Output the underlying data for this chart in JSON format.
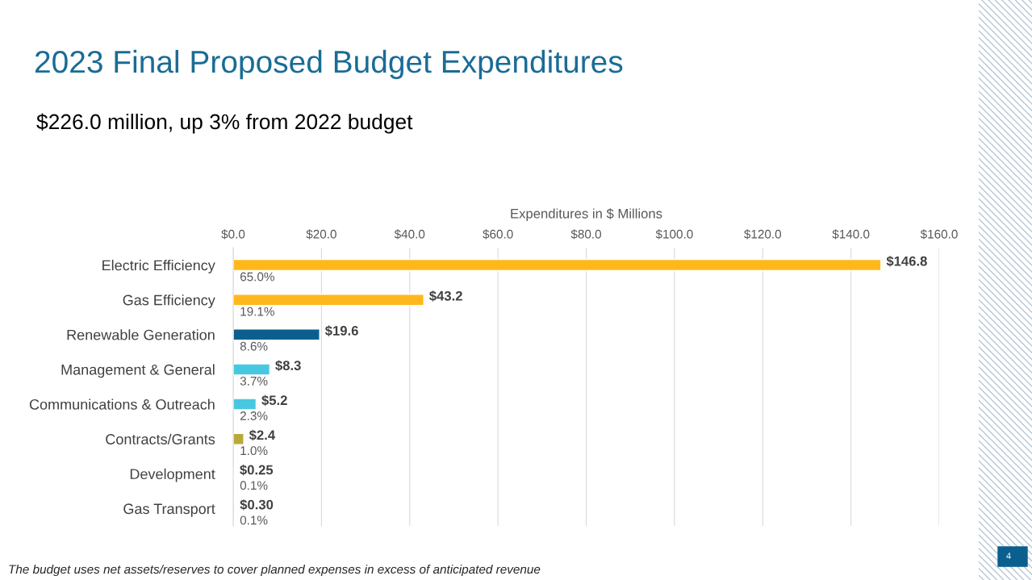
{
  "chart_data": {
    "type": "bar",
    "orientation": "horizontal",
    "title": "2023 Final Proposed Budget Expenditures",
    "subtitle": "$226.0 million, up 3% from 2022 budget",
    "xlabel": "Expenditures in $ Millions",
    "categories": [
      "Electric Efficiency",
      "Gas Efficiency",
      "Renewable Generation",
      "Management & General",
      "Communications & Outreach",
      "Contracts/Grants",
      "Development",
      "Gas Transport"
    ],
    "values": [
      146.8,
      43.2,
      19.6,
      8.3,
      5.2,
      2.4,
      0.25,
      0.3
    ],
    "colors": [
      "#ffb81c",
      "#ffb81c",
      "#0b5f8f",
      "#48c8e0",
      "#48c8e0",
      "#b8a93a",
      "#48c8e0",
      "#f26b2d"
    ],
    "value_labels": [
      "$146.8",
      "$43.2",
      "$19.6",
      "$8.3",
      "$5.2",
      "$2.4",
      "$0.25",
      "$0.30"
    ],
    "xlim": [
      0,
      160
    ],
    "xticks": [
      {
        "value": 0,
        "label": "$0.0"
      },
      {
        "value": 20,
        "label": "$20.0"
      },
      {
        "value": 40,
        "label": "$40.0"
      },
      {
        "value": 60,
        "label": "$60.0"
      },
      {
        "value": 80,
        "label": "$80.0"
      },
      {
        "value": 100,
        "label": "$100.0"
      },
      {
        "value": 120,
        "label": "$120.0"
      },
      {
        "value": 140,
        "label": "$140.0"
      },
      {
        "value": 160,
        "label": "$160.0"
      }
    ],
    "grid": "x",
    "legend": false,
    "annotations": [
      "65.0%",
      "19.1%",
      "8.6%",
      "3.7%",
      "2.3%",
      "1.0%",
      "0.1%",
      "0.1%",
      "The budget uses net assets/reserves to cover planned expenses in excess of anticipated revenue",
      "4"
    ]
  }
}
